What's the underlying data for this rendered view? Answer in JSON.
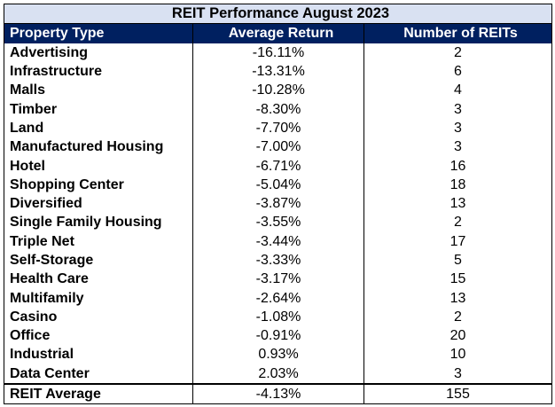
{
  "chart_data": {
    "type": "table",
    "title": "REIT Performance August 2023",
    "columns": [
      "Property Type",
      "Average Return",
      "Number of REITs"
    ],
    "rows": [
      {
        "type": "Advertising",
        "return": "-16.11%",
        "count": "2"
      },
      {
        "type": "Infrastructure",
        "return": "-13.31%",
        "count": "6"
      },
      {
        "type": "Malls",
        "return": "-10.28%",
        "count": "4"
      },
      {
        "type": "Timber",
        "return": "-8.30%",
        "count": "3"
      },
      {
        "type": "Land",
        "return": "-7.70%",
        "count": "3"
      },
      {
        "type": "Manufactured Housing",
        "return": "-7.00%",
        "count": "3"
      },
      {
        "type": "Hotel",
        "return": "-6.71%",
        "count": "16"
      },
      {
        "type": "Shopping Center",
        "return": "-5.04%",
        "count": "18"
      },
      {
        "type": "Diversified",
        "return": "-3.87%",
        "count": "13"
      },
      {
        "type": "Single Family Housing",
        "return": "-3.55%",
        "count": "2"
      },
      {
        "type": "Triple Net",
        "return": "-3.44%",
        "count": "17"
      },
      {
        "type": "Self-Storage",
        "return": "-3.33%",
        "count": "5"
      },
      {
        "type": "Health Care",
        "return": "-3.17%",
        "count": "15"
      },
      {
        "type": "Multifamily",
        "return": "-2.64%",
        "count": "13"
      },
      {
        "type": "Casino",
        "return": "-1.08%",
        "count": "2"
      },
      {
        "type": "Office",
        "return": "-0.91%",
        "count": "20"
      },
      {
        "type": "Industrial",
        "return": "0.93%",
        "count": "10"
      },
      {
        "type": "Data Center",
        "return": "2.03%",
        "count": "3"
      }
    ],
    "average": {
      "type": "REIT Average",
      "return": "-4.13%",
      "count": "155"
    }
  },
  "colors": {
    "title_bg": "#d9e1f2",
    "header_bg": "#002060",
    "header_text": "#ffffff"
  }
}
